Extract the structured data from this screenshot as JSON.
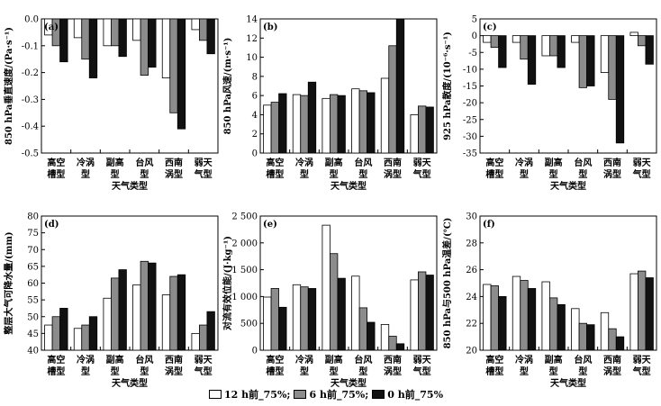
{
  "colors": {
    "12h": "#ffffff",
    "6h": "#8c8c8c",
    "0h": "#111111"
  },
  "legend": [
    {
      "key": "12h",
      "label": "12 h前_75%;"
    },
    {
      "key": "6h",
      "label": "6 h前_75%;"
    },
    {
      "key": "0h",
      "label": "0 h前_75%"
    }
  ],
  "chart_data": [
    {
      "type": "bar",
      "tag": "(a)",
      "categories": [
        "高空槽型",
        "冷涡型",
        "副高型",
        "台风型",
        "西南涡型",
        "弱天气型"
      ],
      "xlabel": "天气类型",
      "ylabel": "850 hPa垂直速度/(Pa·s⁻¹)",
      "ylim": [
        -0.5,
        0
      ],
      "yticks": [
        "0.0",
        "-0.1",
        "-0.2",
        "-0.3",
        "-0.4",
        "-0.5"
      ],
      "series": [
        {
          "key": "12h",
          "values": [
            -0.06,
            -0.07,
            -0.1,
            -0.08,
            -0.22,
            -0.04
          ]
        },
        {
          "key": "6h",
          "values": [
            -0.1,
            -0.15,
            -0.1,
            -0.21,
            -0.35,
            -0.08
          ]
        },
        {
          "key": "0h",
          "values": [
            -0.16,
            -0.22,
            -0.14,
            -0.18,
            -0.41,
            -0.13
          ]
        }
      ]
    },
    {
      "type": "bar",
      "tag": "(b)",
      "categories": [
        "高空槽型",
        "冷涡型",
        "副高型",
        "台风型",
        "西南涡型",
        "弱天气型"
      ],
      "xlabel": "天气类型",
      "ylabel": "850 hPa风速/(m·s⁻¹)",
      "ylim": [
        0,
        14
      ],
      "yticks": [
        "0",
        "2",
        "4",
        "6",
        "8",
        "10",
        "12",
        "14"
      ],
      "series": [
        {
          "key": "12h",
          "values": [
            5.0,
            6.1,
            5.7,
            6.7,
            7.8,
            4.0
          ]
        },
        {
          "key": "6h",
          "values": [
            5.3,
            6.0,
            6.1,
            6.5,
            11.2,
            4.9
          ]
        },
        {
          "key": "0h",
          "values": [
            6.2,
            7.4,
            6.0,
            6.3,
            14.0,
            4.8
          ]
        }
      ]
    },
    {
      "type": "bar",
      "tag": "(c)",
      "categories": [
        "高空槽型",
        "冷涡型",
        "副高型",
        "台风型",
        "西南涡型",
        "弱天气型"
      ],
      "xlabel": "天气类型",
      "ylabel": "925 hPa散度/(10⁻⁶·s⁻¹)",
      "ylim": [
        -35,
        5
      ],
      "yticks": [
        "5",
        "0",
        "-5",
        "-10",
        "-15",
        "-20",
        "-25",
        "-30",
        "-35"
      ],
      "series": [
        {
          "key": "12h",
          "values": [
            -2.0,
            -2.0,
            -6.0,
            -2.0,
            -11.0,
            1.0
          ]
        },
        {
          "key": "6h",
          "values": [
            -3.5,
            -7.0,
            -6.0,
            -15.5,
            -19.0,
            -3.0
          ]
        },
        {
          "key": "0h",
          "values": [
            -9.5,
            -14.5,
            -9.5,
            -15.0,
            -32.0,
            -8.5
          ]
        }
      ]
    },
    {
      "type": "bar",
      "tag": "(d)",
      "categories": [
        "高空槽型",
        "冷涡型",
        "副高型",
        "台风型",
        "西南涡型",
        "弱天气型"
      ],
      "xlabel": "天气类型",
      "ylabel": "整层大气可降水量/(mm)",
      "ylim": [
        40,
        80
      ],
      "yticks": [
        "80",
        "75",
        "70",
        "65",
        "60",
        "55",
        "50",
        "45",
        "40"
      ],
      "series": [
        {
          "key": "12h",
          "values": [
            47.5,
            46.5,
            55.5,
            59.5,
            56.5,
            45.0
          ]
        },
        {
          "key": "6h",
          "values": [
            50.0,
            47.5,
            61.5,
            66.5,
            62.0,
            47.5
          ]
        },
        {
          "key": "0h",
          "values": [
            52.5,
            50.0,
            64.0,
            66.0,
            62.5,
            51.5
          ]
        }
      ]
    },
    {
      "type": "bar",
      "tag": "(e)",
      "categories": [
        "高空槽型",
        "冷涡型",
        "副高型",
        "台风型",
        "西南涡型",
        "弱天气型"
      ],
      "xlabel": "天气类型",
      "ylabel": "对流有效位能/(J·kg⁻¹)",
      "ylim": [
        0,
        2500
      ],
      "yticks": [
        "2 500",
        "2 000",
        "1 500",
        "1 000",
        "500",
        "0"
      ],
      "series": [
        {
          "key": "12h",
          "values": [
            990,
            1220,
            2330,
            1380,
            480,
            1310
          ]
        },
        {
          "key": "6h",
          "values": [
            1150,
            1180,
            1800,
            790,
            260,
            1460
          ]
        },
        {
          "key": "0h",
          "values": [
            800,
            1150,
            1340,
            520,
            120,
            1400
          ]
        }
      ]
    },
    {
      "type": "bar",
      "tag": "(f)",
      "categories": [
        "高空槽型",
        "冷涡型",
        "副高型",
        "台风型",
        "西南涡型",
        "弱天气型"
      ],
      "xlabel": "天气类型",
      "ylabel": "850 hPa与500 hPa温差/(℃)",
      "ylim": [
        20,
        30
      ],
      "yticks": [
        "30",
        "28",
        "26",
        "24",
        "22",
        "20"
      ],
      "series": [
        {
          "key": "12h",
          "values": [
            24.9,
            25.5,
            25.1,
            23.1,
            22.8,
            25.7
          ]
        },
        {
          "key": "6h",
          "values": [
            24.8,
            25.2,
            23.9,
            22.0,
            21.6,
            25.9
          ]
        },
        {
          "key": "0h",
          "values": [
            24.0,
            24.6,
            23.4,
            21.9,
            21.0,
            25.4
          ]
        }
      ]
    }
  ]
}
